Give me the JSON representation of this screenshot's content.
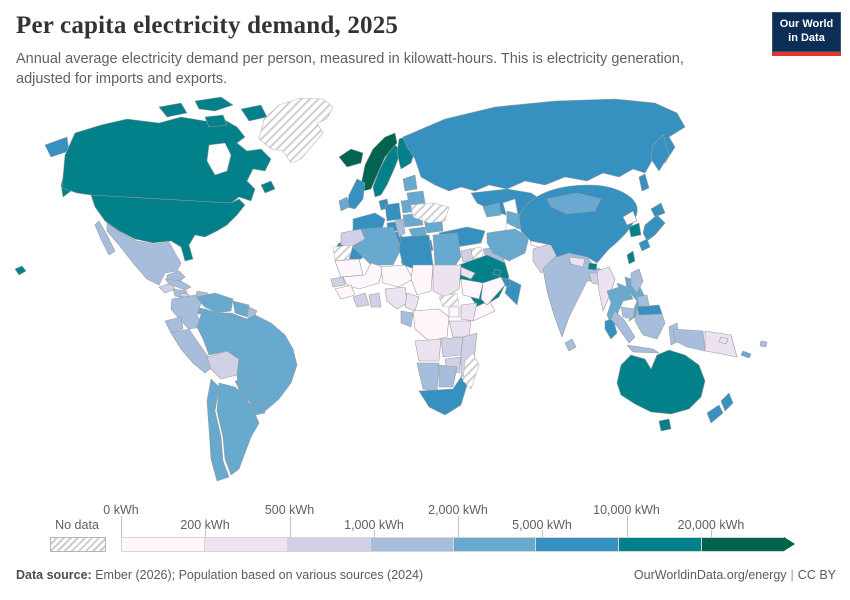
{
  "header": {
    "title": "Per capita electricity demand, 2025",
    "subtitle": "Annual average electricity demand per person, measured in kilowatt-hours. This is electricity generation, adjusted for imports and exports.",
    "logo_line1": "Our World",
    "logo_line2": "in Data"
  },
  "legend": {
    "no_data_label": "No data",
    "tick_labels": [
      "0 kWh",
      "200 kWh",
      "500 kWh",
      "1,000 kWh",
      "2,000 kWh",
      "5,000 kWh",
      "10,000 kWh",
      "20,000 kWh"
    ],
    "bin_colors": [
      "#fff7fb",
      "#ece2f0",
      "#d0d1e6",
      "#a6bddb",
      "#67a9cf",
      "#3690c0",
      "#02818a",
      "#016450"
    ]
  },
  "footer": {
    "source_label": "Data source:",
    "source_text": " Ember (2026); Population based on various sources (2024)",
    "link": "OurWorldinData.org/energy",
    "separator": "|",
    "license": "CC BY"
  },
  "chart_data": {
    "type": "choropleth_map",
    "title": "Per capita electricity demand, 2025",
    "unit": "kWh",
    "year": 2025,
    "bin_edges_kwh": [
      0,
      200,
      500,
      1000,
      2000,
      5000,
      10000,
      20000
    ],
    "bin_colors": [
      "#fff7fb",
      "#ece2f0",
      "#d0d1e6",
      "#a6bddb",
      "#67a9cf",
      "#3690c0",
      "#02818a",
      "#016450"
    ],
    "no_data_style": "white with diagonal gray hatching",
    "countries": {
      "greenland": "nodata",
      "ukraine": "nodata",
      "syria": "nodata",
      "western-sahara": "nodata",
      "south-sudan": "nodata",
      "madagascar": "nodata",
      "svalbard": "nodata",
      "norway": 7,
      "iceland": 7,
      "canada": 6,
      "usa": 6,
      "alaska": 6,
      "hawaii": 6,
      "sweden": 6,
      "finland": 6,
      "saudi-arabia": 6,
      "south-korea": 6,
      "taiwan": 6,
      "australia": 6,
      "tasmania": 6,
      "bhutan": 6,
      "gulf-states": 6,
      "russia": 5,
      "chukotka": 5,
      "kamchatka": 5,
      "sakhalin": 5,
      "kazakhstan": 5,
      "china": 5,
      "japan-hokkaido": 5,
      "japan-honshu": 5,
      "japan-kyushu": 5,
      "united-kingdom": 5,
      "france": 5,
      "germany": 5,
      "spain": 5,
      "italy": 5,
      "sicily": 5,
      "alpine-europe": 5,
      "greece": 5,
      "denmark": 5,
      "turkey": 5,
      "libya": 5,
      "south-africa": 5,
      "oman": 5,
      "uae": 5,
      "malaysia": 5,
      "malaysia-borneo": 5,
      "new-zealand-north": 5,
      "new-zealand-south": 5,
      "puerto-rico": 5,
      "ireland": 4,
      "poland": 4,
      "central-europe": 4,
      "balkans": 4,
      "romania-bulgaria": 4,
      "baltics": 4,
      "belarus": 4,
      "mongolia": 4,
      "central-asia": 4,
      "caucasus": 4,
      "iran": 4,
      "algeria": 4,
      "egypt": 4,
      "venezuela": 4,
      "guyana-suriname": 4,
      "brazil": 4,
      "paraguay": 4,
      "uruguay": 4,
      "argentina": 4,
      "chile": 4,
      "panama": 4,
      "thailand": 4,
      "laos": 4,
      "vietnam": 4,
      "new-caledonia": 4,
      "mexico": 3,
      "baja-california": 3,
      "cuba": 3,
      "hispaniola": 3,
      "honduras": 3,
      "costa-rica": 3,
      "colombia": 3,
      "ecuador": 3,
      "peru": 3,
      "french-guiana": 3,
      "tunisia": 3,
      "namibia": 3,
      "botswana": 3,
      "gabon-congo": 3,
      "iraq": 3,
      "india": 3,
      "sri-lanka": 3,
      "cambodia": 3,
      "sumatra": 3,
      "java": 3,
      "borneo": 3,
      "sulawesi": 3,
      "west-new-guinea": 3,
      "philippines-north": 3,
      "philippines-south": 3,
      "fiji": 3,
      "morocco": 2,
      "guatemala": 2,
      "nicaragua": 2,
      "jamaica": 2,
      "bolivia": 2,
      "senegal": 2,
      "ivory-coast": 2,
      "ghana": 2,
      "zambia": 2,
      "zimbabwe": 2,
      "mozambique": 2,
      "pakistan": 2,
      "bangladesh": 2,
      "jordan": 2,
      "sudan": 1,
      "eritrea": 1,
      "nigeria": 1,
      "cameroon": 1,
      "angola": 1,
      "kenya": 1,
      "tanzania": 1,
      "nepal": 1,
      "myanmar": 1,
      "papua-new-guinea": 1,
      "solomon-islands": 1,
      "mauritania": 0,
      "mali": 0,
      "niger": 0,
      "chad": 0,
      "ethiopia": 0,
      "somalia": 0,
      "uganda": 0,
      "drc": 0,
      "guinea": 0,
      "yemen": 0,
      "afghanistan": 0,
      "north-korea": 0
    }
  }
}
